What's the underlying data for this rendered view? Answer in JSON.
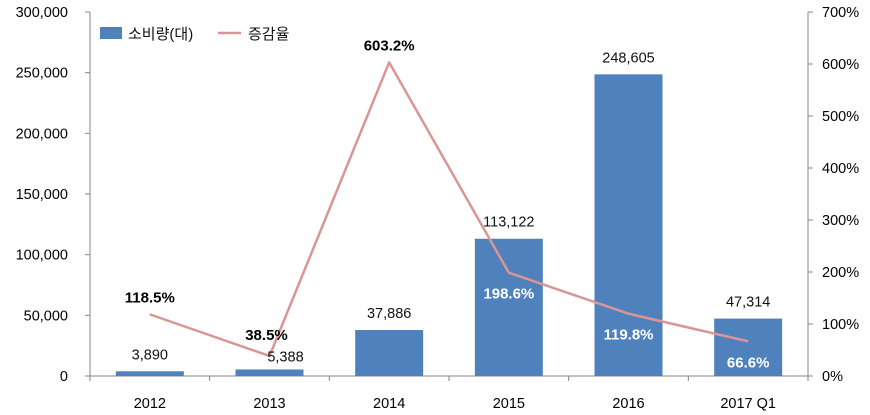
{
  "chart_data": {
    "type": "bar",
    "categories": [
      "2012",
      "2013",
      "2014",
      "2015",
      "2016",
      "2017 Q1"
    ],
    "series": [
      {
        "name": "소비량(대)",
        "type": "bar",
        "axis": "left",
        "values": [
          3890,
          5388,
          37886,
          113122,
          248605,
          47314
        ],
        "labels": [
          "3,890",
          "5,388",
          "37,886",
          "113,122",
          "248,605",
          "47,314"
        ],
        "color": "#4F81BD"
      },
      {
        "name": "증감율",
        "type": "line",
        "axis": "right",
        "values": [
          118.5,
          38.5,
          603.2,
          198.6,
          119.8,
          66.6
        ],
        "labels": [
          "118.5%",
          "38.5%",
          "603.2%",
          "198.6%",
          "119.8%",
          "66.6%"
        ],
        "label_colors": [
          "#000000",
          "#000000",
          "#000000",
          "#ffffff",
          "#ffffff",
          "#ffffff"
        ],
        "color": "#D99694"
      }
    ],
    "y_left": {
      "ylim": [
        0,
        300000
      ],
      "ticks": [
        "0",
        "50,000",
        "100,000",
        "150,000",
        "200,000",
        "250,000",
        "300,000"
      ]
    },
    "y_right": {
      "ylim": [
        0,
        700
      ],
      "ticks": [
        "0%",
        "100%",
        "200%",
        "300%",
        "400%",
        "500%",
        "600%",
        "700%"
      ]
    },
    "grid": false,
    "legend": "top-left"
  }
}
